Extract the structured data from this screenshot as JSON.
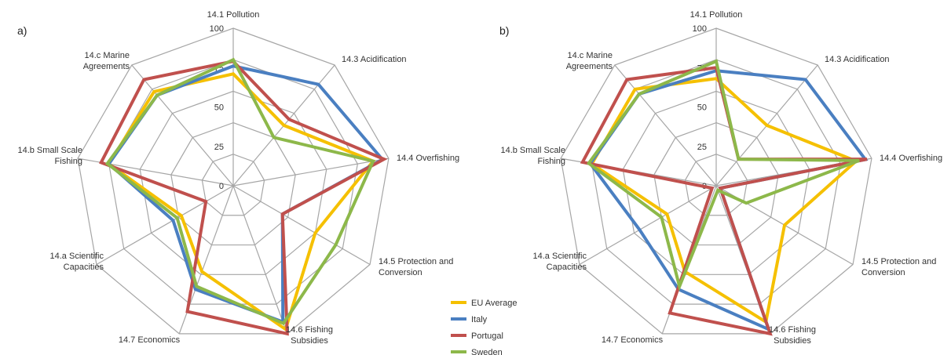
{
  "chart_data": [
    {
      "type": "radar",
      "panel_label": "a)",
      "axes": [
        "14.1 Pollution",
        "14.3 Acidification",
        "14.4 Overfishing",
        "14.5 Protection and Conversion",
        "14.6 Fishing Subsidies",
        "14.7 Economics",
        "14.a Scientific Capacities",
        "14.b Small Scale Fishing",
        "14.c Marine Agreements"
      ],
      "ticks": [
        "0",
        "25",
        "50",
        "75",
        "100"
      ],
      "range": [
        0,
        100
      ],
      "series": [
        {
          "name": "EU Average",
          "values": [
            71,
            50,
            90,
            60,
            97,
            58,
            38,
            80,
            78
          ]
        },
        {
          "name": "Italy",
          "values": [
            76,
            84,
            96,
            36,
            92,
            70,
            44,
            80,
            75
          ]
        },
        {
          "name": "Portugal",
          "values": [
            79,
            55,
            97,
            36,
            100,
            85,
            20,
            85,
            88
          ]
        },
        {
          "name": "Sweden",
          "values": [
            80,
            40,
            90,
            75,
            93,
            68,
            41,
            81,
            75
          ]
        }
      ]
    },
    {
      "type": "radar",
      "panel_label": "b)",
      "axes": [
        "14.1 Pollution",
        "14.3 Acidification",
        "14.4 Overfishing",
        "14.5 Protection and Conversion",
        "14.6 Fishing Subsidies",
        "14.7 Economics",
        "14.a Scientific Capacities",
        "14.b Small Scale Fishing",
        "14.c Marine Agreements"
      ],
      "ticks": [
        "0",
        "25",
        "50",
        "75",
        "100"
      ],
      "range": [
        0,
        100
      ],
      "series": [
        {
          "name": "EU Average",
          "values": [
            68,
            50,
            90,
            50,
            92,
            58,
            36,
            80,
            80
          ]
        },
        {
          "name": "Italy",
          "values": [
            73,
            88,
            96,
            3,
            97,
            70,
            56,
            81,
            76
          ]
        },
        {
          "name": "Portugal",
          "values": [
            75,
            22,
            97,
            3,
            100,
            86,
            3,
            86,
            88
          ]
        },
        {
          "name": "Sweden",
          "values": [
            79,
            22,
            92,
            22,
            3,
            68,
            40,
            82,
            76
          ]
        }
      ]
    }
  ],
  "legend": [
    {
      "name": "EU Average",
      "color": "#f5c000"
    },
    {
      "name": "Italy",
      "color": "#4a7fc1"
    },
    {
      "name": "Portugal",
      "color": "#c0504d"
    },
    {
      "name": "Sweden",
      "color": "#8db84a"
    }
  ]
}
